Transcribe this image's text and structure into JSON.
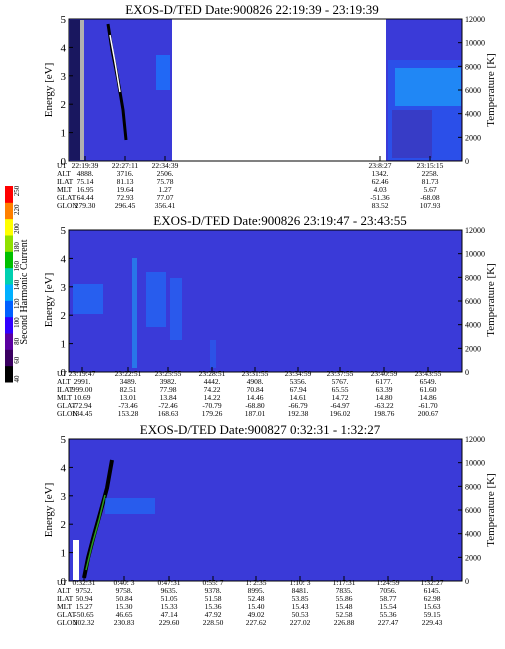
{
  "colorbar": {
    "title": "Second Harmonic Current",
    "ticks": [
      "40",
      "60",
      "80",
      "100",
      "120",
      "140",
      "160",
      "180",
      "200",
      "220",
      "250"
    ],
    "colors": [
      "#000000",
      "#3a0060",
      "#5a00a0",
      "#3000ff",
      "#0060ff",
      "#00b0ff",
      "#00d0b0",
      "#00c000",
      "#90e000",
      "#ffff00",
      "#ff8000",
      "#ff0000"
    ]
  },
  "chart_data": [
    {
      "type": "heatmap",
      "title": "EXOS-D/TED   Date:900826  22:19:39 - 23:19:39",
      "ylabel": "Energy [eV]",
      "y2label": "Temperature [K]",
      "ylim": [
        0,
        5
      ],
      "y2lim": [
        0,
        12000
      ],
      "yticks": [
        "0",
        "1",
        "2",
        "3",
        "4",
        "5"
      ],
      "y2ticks": [
        "0",
        "2000",
        "4000",
        "6000",
        "8000",
        "10000",
        "12000"
      ],
      "background_color": "#3a3ad8",
      "data_gap": [
        "22:34:39",
        "23:08:27"
      ],
      "table": {
        "row_labels": [
          "UT",
          "ALT",
          "ILAT",
          "MLT",
          "GLAT",
          "GLON"
        ],
        "columns": [
          [
            "22:19:39",
            "4888.",
            "75.14",
            "16.95",
            "64.44",
            "279.30"
          ],
          [
            "22:27:11",
            "3716.",
            "81.13",
            "19.64",
            "72.93",
            "296.45"
          ],
          [
            "22:34:39",
            "2506.",
            "75.78",
            "1.27",
            "77.07",
            "356.41"
          ],
          [
            "23:8:27",
            "1342.",
            "62.46",
            "4.03",
            "-51.36",
            "83.52"
          ],
          [
            "23:15:15",
            "2258.",
            "81.73",
            "5.67",
            "-68.08",
            "107.93"
          ]
        ]
      }
    },
    {
      "type": "heatmap",
      "title": "EXOS-D/TED   Date:900826  23:19:47 - 23:43:55",
      "ylabel": "Energy [eV]",
      "y2label": "Temperature [K]",
      "ylim": [
        0,
        5
      ],
      "y2lim": [
        0,
        12000
      ],
      "yticks": [
        "0",
        "1",
        "2",
        "3",
        "4",
        "5"
      ],
      "y2ticks": [
        "0",
        "2000",
        "4000",
        "6000",
        "8000",
        "10000",
        "12000"
      ],
      "background_color": "#3a3ad8",
      "table": {
        "row_labels": [
          "UT",
          "ALT",
          "ILAT",
          "MLT",
          "GLAT",
          "GLON"
        ],
        "columns": [
          [
            "23:19:47",
            "2991.",
            "999.00",
            "10.69",
            "-72.94",
            "134.45"
          ],
          [
            "23:22:51",
            "3489.",
            "82.51",
            "13.01",
            "-73.46",
            "153.28"
          ],
          [
            "23:25:55",
            "3982.",
            "77.98",
            "13.84",
            "-72.46",
            "168.63"
          ],
          [
            "23:28:51",
            "4442.",
            "74.22",
            "14.22",
            "-70.79",
            "179.26"
          ],
          [
            "23:31:55",
            "4908.",
            "70.84",
            "14.46",
            "-68.80",
            "187.01"
          ],
          [
            "23:34:59",
            "5356.",
            "67.94",
            "14.61",
            "-66.79",
            "192.38"
          ],
          [
            "23:37:55",
            "5767.",
            "65.55",
            "14.72",
            "-64.97",
            "196.02"
          ],
          [
            "23:40:59",
            "6177.",
            "63.39",
            "14.80",
            "-63.22",
            "198.76"
          ],
          [
            "23:43:55",
            "6549.",
            "61.60",
            "14.86",
            "-61.70",
            "200.67"
          ]
        ]
      }
    },
    {
      "type": "heatmap",
      "title": "EXOS-D/TED   Date:900827   0:32:31 - 1:32:27",
      "ylabel": "Energy [eV]",
      "y2label": "Temperature [K]",
      "ylim": [
        0,
        5
      ],
      "y2lim": [
        0,
        12000
      ],
      "yticks": [
        "0",
        "1",
        "2",
        "3",
        "4",
        "5"
      ],
      "y2ticks": [
        "0",
        "2000",
        "4000",
        "6000",
        "8000",
        "10000",
        "12000"
      ],
      "background_color": "#3a3ad8",
      "table": {
        "row_labels": [
          "UT",
          "ALT",
          "ILAT",
          "MLT",
          "GLAT",
          "GLON"
        ],
        "columns": [
          [
            "0:32:31",
            "9752.",
            "50.94",
            "15.27",
            "-50.65",
            "202.32"
          ],
          [
            "0:40: 3",
            "9758.",
            "50.84",
            "15.30",
            "46.65",
            "230.83"
          ],
          [
            "0:47:31",
            "9635.",
            "51.05",
            "15.33",
            "47.14",
            "229.60"
          ],
          [
            "0:55: 7",
            "9378.",
            "51.58",
            "15.36",
            "47.92",
            "228.50"
          ],
          [
            "1: 2:35",
            "8995.",
            "52.48",
            "15.40",
            "49.02",
            "227.62"
          ],
          [
            "1:10: 3",
            "8481.",
            "53.85",
            "15.43",
            "50.53",
            "227.02"
          ],
          [
            "1:17:31",
            "7835.",
            "55.86",
            "15.48",
            "52.58",
            "226.88"
          ],
          [
            "1:24:59",
            "7056.",
            "58.77",
            "15.54",
            "55.36",
            "227.47"
          ],
          [
            "1:32:27",
            "6145.",
            "62.98",
            "15.63",
            "59.15",
            "229.43"
          ]
        ]
      }
    }
  ]
}
